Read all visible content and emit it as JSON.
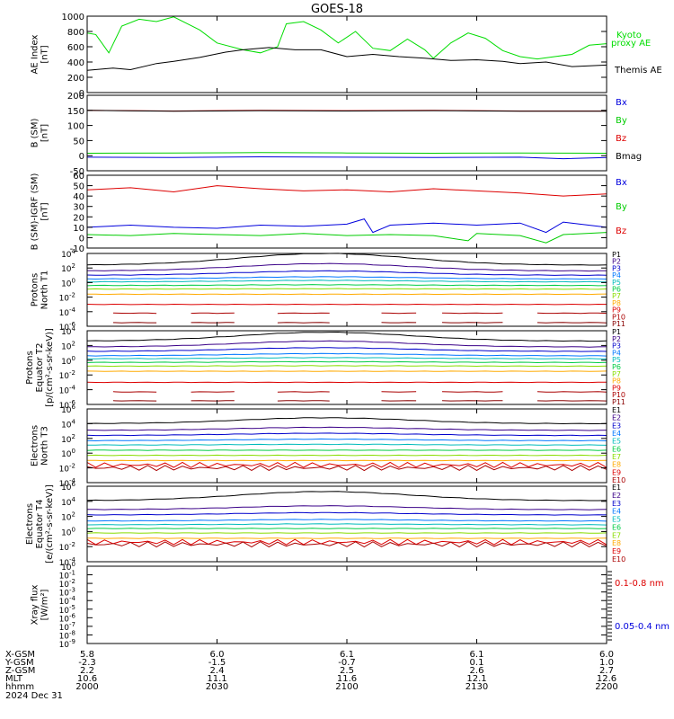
{
  "title": "GOES-18",
  "chart_data": [
    {
      "type": "line",
      "panel": "ae",
      "ylabel": [
        "AE Index",
        "[nT]"
      ],
      "ylim": [
        0,
        1000
      ],
      "yticks": [
        "0",
        "200",
        "400",
        "600",
        "800",
        "1000"
      ],
      "legend": [
        "Kyoto",
        "proxy AE",
        "Themis AE"
      ],
      "series": [
        {
          "name": "Kyoto proxy AE",
          "color": "#00dd00",
          "x": [
            0,
            2,
            5,
            8,
            12,
            16,
            20,
            26,
            30,
            36,
            40,
            44,
            46,
            50,
            54,
            58,
            62,
            66,
            70,
            74,
            78,
            80,
            84,
            88,
            92,
            96,
            100,
            104,
            108,
            112,
            116,
            120
          ],
          "y": [
            780,
            760,
            520,
            870,
            960,
            930,
            990,
            820,
            650,
            560,
            520,
            600,
            900,
            930,
            820,
            650,
            800,
            580,
            550,
            700,
            560,
            450,
            650,
            780,
            710,
            550,
            470,
            440,
            470,
            500,
            620,
            640
          ]
        },
        {
          "name": "Themis AE",
          "color": "#000000",
          "x": [
            0,
            6,
            10,
            16,
            20,
            26,
            32,
            36,
            42,
            48,
            54,
            60,
            66,
            72,
            78,
            84,
            90,
            96,
            100,
            106,
            112,
            116,
            120
          ],
          "y": [
            290,
            320,
            300,
            380,
            410,
            460,
            530,
            560,
            590,
            560,
            560,
            470,
            500,
            470,
            450,
            420,
            430,
            410,
            380,
            400,
            340,
            350,
            360
          ]
        }
      ]
    },
    {
      "type": "line",
      "panel": "bsm",
      "ylabel": [
        "B (SM)",
        "[nT]"
      ],
      "ylim": [
        -50,
        200
      ],
      "yticks": [
        "-50",
        "0",
        "50",
        "100",
        "150",
        "200"
      ],
      "legend": [
        "Bx",
        "By",
        "Bz",
        "Bmag"
      ],
      "series": [
        {
          "name": "Bx",
          "color": "#0000dd",
          "x": [
            0,
            20,
            40,
            60,
            80,
            100,
            110,
            120
          ],
          "y": [
            -5,
            -6,
            -4,
            -5,
            -6,
            -5,
            -10,
            -6
          ]
        },
        {
          "name": "By",
          "color": "#00cc00",
          "x": [
            0,
            20,
            40,
            60,
            80,
            100,
            120
          ],
          "y": [
            8,
            9,
            10,
            9,
            8,
            9,
            8
          ]
        },
        {
          "name": "Bz",
          "color": "#dd0000",
          "x": [
            0,
            20,
            40,
            60,
            80,
            100,
            120
          ],
          "y": [
            150,
            148,
            150,
            149,
            150,
            148,
            148
          ]
        },
        {
          "name": "Bmag",
          "color": "#000000",
          "x": [
            0,
            20,
            40,
            60,
            80,
            100,
            120
          ],
          "y": [
            150,
            147,
            149,
            148,
            149,
            147,
            147
          ]
        }
      ]
    },
    {
      "type": "line",
      "panel": "bigrf",
      "ylabel": [
        "B (SM)-IGRF (SM)",
        "[nT]"
      ],
      "ylim": [
        -10,
        60
      ],
      "yticks": [
        "-10",
        "0",
        "10",
        "20",
        "30",
        "40",
        "50",
        "60"
      ],
      "legend": [
        "Bx",
        "By",
        "Bz"
      ],
      "series": [
        {
          "name": "Bx",
          "color": "#0000dd",
          "x": [
            0,
            10,
            20,
            30,
            40,
            50,
            60,
            64,
            66,
            70,
            80,
            90,
            100,
            106,
            110,
            120
          ],
          "y": [
            10,
            12,
            10,
            9,
            12,
            11,
            13,
            18,
            5,
            12,
            14,
            12,
            14,
            5,
            15,
            10
          ]
        },
        {
          "name": "By",
          "color": "#00cc00",
          "x": [
            0,
            10,
            20,
            30,
            40,
            50,
            60,
            70,
            80,
            88,
            90,
            100,
            106,
            110,
            120
          ],
          "y": [
            3,
            2,
            4,
            3,
            2,
            4,
            2,
            3,
            2,
            -3,
            4,
            2,
            -5,
            3,
            5
          ]
        },
        {
          "name": "Bz",
          "color": "#dd0000",
          "x": [
            0,
            10,
            20,
            30,
            40,
            50,
            60,
            70,
            80,
            90,
            100,
            110,
            120
          ],
          "y": [
            46,
            48,
            44,
            50,
            47,
            45,
            46,
            44,
            47,
            45,
            43,
            40,
            42
          ]
        }
      ]
    },
    {
      "type": "line",
      "panel": "p1",
      "ylabel": [
        "Protons",
        "North T1"
      ],
      "log": true,
      "ylim": [
        -6,
        4
      ],
      "yticks": [
        "-6",
        "-4",
        "-2",
        "0",
        "2",
        "4"
      ],
      "legend": [
        "P1",
        "P2",
        "P3",
        "P4",
        "P5",
        "P6",
        "P7",
        "P8",
        "P9",
        "P10",
        "P11"
      ],
      "series": [
        {
          "name": "P1",
          "color": "#000000",
          "y": 2.4,
          "bump": 1.6
        },
        {
          "name": "P2",
          "color": "#3a0088",
          "y": 1.6,
          "bump": 1.0
        },
        {
          "name": "P3",
          "color": "#0000cc",
          "y": 1.0,
          "bump": 0.6
        },
        {
          "name": "P4",
          "color": "#0077ff",
          "y": 0.5,
          "bump": 0.3
        },
        {
          "name": "P5",
          "color": "#00bbbb",
          "y": 0.1,
          "bump": 0.2
        },
        {
          "name": "P6",
          "color": "#00cc44",
          "y": -0.4,
          "bump": 0.1
        },
        {
          "name": "P7",
          "color": "#88dd00",
          "y": -0.9,
          "bump": 0.05
        },
        {
          "name": "P8",
          "color": "#ffaa00",
          "y": -1.6,
          "bump": 0.0
        },
        {
          "name": "P9",
          "color": "#dd0000",
          "y": -3.0,
          "bump": 0.0
        },
        {
          "name": "P10",
          "color": "#aa0000",
          "y": -4.2,
          "bump": 0.0,
          "broken": true
        },
        {
          "name": "P11",
          "color": "#880000",
          "y": -5.5,
          "bump": 0.0,
          "broken": true
        }
      ]
    },
    {
      "type": "line",
      "panel": "p2",
      "ylabel": [
        "Protons",
        "Equator T2",
        "[p/(cm²-s-sr-keV)]"
      ],
      "log": true,
      "ylim": [
        -6,
        4
      ],
      "yticks": [
        "-6",
        "-4",
        "-2",
        "0",
        "2",
        "4"
      ],
      "legend": [
        "P1",
        "P2",
        "P3",
        "P4",
        "P5",
        "P6",
        "P7",
        "P8",
        "P9",
        "P10",
        "P11"
      ],
      "series": [
        {
          "name": "P1",
          "color": "#000000",
          "y": 2.6,
          "bump": 1.2
        },
        {
          "name": "P2",
          "color": "#3a0088",
          "y": 1.8,
          "bump": 0.8
        },
        {
          "name": "P3",
          "color": "#0000cc",
          "y": 1.2,
          "bump": 0.5
        },
        {
          "name": "P4",
          "color": "#0077ff",
          "y": 0.6,
          "bump": 0.3
        },
        {
          "name": "P5",
          "color": "#00bbbb",
          "y": 0.2,
          "bump": 0.15
        },
        {
          "name": "P6",
          "color": "#00cc44",
          "y": -0.3,
          "bump": 0.1
        },
        {
          "name": "P7",
          "color": "#88dd00",
          "y": -0.8,
          "bump": 0.05
        },
        {
          "name": "P8",
          "color": "#ffaa00",
          "y": -1.5,
          "bump": 0.0
        },
        {
          "name": "P9",
          "color": "#dd0000",
          "y": -3.0,
          "bump": 0.0
        },
        {
          "name": "P10",
          "color": "#aa0000",
          "y": -4.3,
          "bump": 0.0,
          "broken": true
        },
        {
          "name": "P11",
          "color": "#880000",
          "y": -5.5,
          "bump": 0.0,
          "broken": true
        }
      ]
    },
    {
      "type": "line",
      "panel": "e1",
      "ylabel": [
        "Electrons",
        "North T3"
      ],
      "log": true,
      "ylim": [
        -4,
        6
      ],
      "yticks": [
        "-4",
        "-2",
        "0",
        "2",
        "4",
        "6"
      ],
      "legend": [
        "E1",
        "E2",
        "E3",
        "E4",
        "E5",
        "E6",
        "E7",
        "E8",
        "E9",
        "E10"
      ],
      "series": [
        {
          "name": "E1",
          "color": "#000000",
          "y": 4.0,
          "bump": 0.8
        },
        {
          "name": "E2",
          "color": "#3a0088",
          "y": 3.1,
          "bump": 0.4
        },
        {
          "name": "E3",
          "color": "#0000cc",
          "y": 2.4,
          "bump": 0.3
        },
        {
          "name": "E4",
          "color": "#0077ff",
          "y": 1.7,
          "bump": 0.2
        },
        {
          "name": "E5",
          "color": "#00bbbb",
          "y": 1.1,
          "bump": 0.1
        },
        {
          "name": "E6",
          "color": "#00cc44",
          "y": 0.4,
          "bump": 0.0
        },
        {
          "name": "E7",
          "color": "#88dd00",
          "y": -0.3,
          "bump": 0.0
        },
        {
          "name": "E8",
          "color": "#ffaa00",
          "y": -1.0,
          "bump": 0.0
        },
        {
          "name": "E9",
          "color": "#dd0000",
          "y": -1.6,
          "bump": 0.0,
          "noisy": true
        },
        {
          "name": "E10",
          "color": "#aa0000",
          "y": -2.0,
          "bump": 0.0,
          "noisy": true
        }
      ]
    },
    {
      "type": "line",
      "panel": "e2",
      "ylabel": [
        "Electrons",
        "Equator T4",
        "[e/(cm²-s-sr-keV)]"
      ],
      "log": true,
      "ylim": [
        -4,
        6
      ],
      "yticks": [
        "-4",
        "-2",
        "0",
        "2",
        "4",
        "6"
      ],
      "legend": [
        "E1",
        "E2",
        "E3",
        "E4",
        "E5",
        "E6",
        "E7",
        "E8",
        "E9",
        "E10"
      ],
      "series": [
        {
          "name": "E1",
          "color": "#000000",
          "y": 4.1,
          "bump": 1.2
        },
        {
          "name": "E2",
          "color": "#3a0088",
          "y": 2.9,
          "bump": 0.5
        },
        {
          "name": "E3",
          "color": "#0000cc",
          "y": 2.2,
          "bump": 0.3
        },
        {
          "name": "E4",
          "color": "#0077ff",
          "y": 1.4,
          "bump": 0.2
        },
        {
          "name": "E5",
          "color": "#00bbbb",
          "y": 0.9,
          "bump": 0.1
        },
        {
          "name": "E6",
          "color": "#00cc44",
          "y": 0.4,
          "bump": 0.0
        },
        {
          "name": "E7",
          "color": "#88dd00",
          "y": -0.2,
          "bump": 0.0
        },
        {
          "name": "E8",
          "color": "#ffaa00",
          "y": -0.9,
          "bump": 0.0
        },
        {
          "name": "E9",
          "color": "#dd0000",
          "y": -1.4,
          "bump": 0.0,
          "noisy": true
        },
        {
          "name": "E10",
          "color": "#aa0000",
          "y": -1.7,
          "bump": 0.0,
          "noisy": true
        }
      ]
    },
    {
      "type": "line",
      "panel": "xray",
      "ylabel": [
        "Xray flux",
        "[W/m²]"
      ],
      "log": true,
      "ylim": [
        -9,
        0
      ],
      "yticks": [
        "-9",
        "-8",
        "-7",
        "-6",
        "-5",
        "-4",
        "-3",
        "-2",
        "-1",
        "0"
      ],
      "legend": [
        "0.1-0.8 nm",
        "0.05-0.4 nm"
      ],
      "series": [
        {
          "name": "0.1-0.8 nm",
          "color": "#dd0000"
        },
        {
          "name": "0.05-0.4 nm",
          "color": "#0000dd"
        }
      ]
    }
  ],
  "legend_colors": {
    "Kyoto": "#00dd00",
    "proxy AE": "#00dd00",
    "Themis AE": "#000000",
    "Bx": "#0000dd",
    "By": "#00cc00",
    "Bz": "#dd0000",
    "Bmag": "#000000",
    "0.1-0.8 nm": "#dd0000",
    "0.05-0.4 nm": "#0000dd"
  },
  "orbit": {
    "rows": [
      {
        "label": "X-GSM",
        "values": [
          "5.8",
          "6.0",
          "6.1",
          "6.1",
          "6.0"
        ]
      },
      {
        "label": "Y-GSM",
        "values": [
          "-2.3",
          "-1.5",
          "-0.7",
          "0.1",
          "1.0"
        ]
      },
      {
        "label": "Z-GSM",
        "values": [
          "2.2",
          "2.4",
          "2.5",
          "2.6",
          "2.7"
        ]
      },
      {
        "label": "MLT",
        "values": [
          "10.6",
          "11.1",
          "11.6",
          "12.1",
          "12.6"
        ]
      },
      {
        "label": "hhmm",
        "values": [
          "2000",
          "2030",
          "2100",
          "2130",
          "2200"
        ]
      }
    ],
    "date": "2024 Dec 31"
  }
}
